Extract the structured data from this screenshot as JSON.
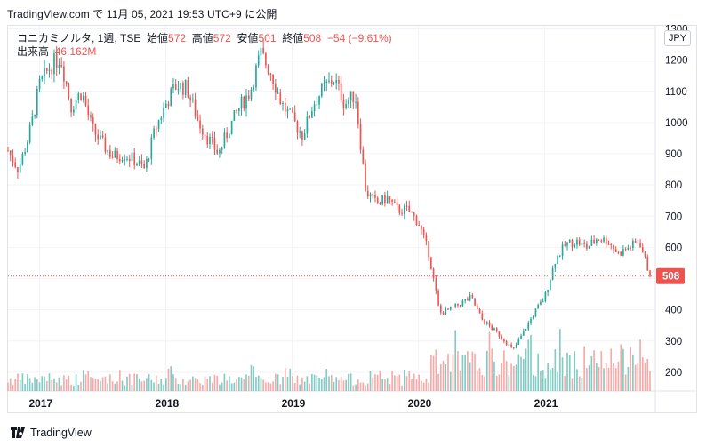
{
  "header": {
    "note": "TradingView.com で 11月 05, 2021 19:53 UTC+9 に公開"
  },
  "legend": {
    "symbol": "コニカミノルタ, 1週, TSE",
    "open_label": "始値",
    "open": "572",
    "high_label": "高値",
    "high": "572",
    "low_label": "安値",
    "low": "501",
    "close_label": "終値",
    "close": "508",
    "change": "−54 (−9.61%)",
    "volume_label": "出来高",
    "volume": "46.162M"
  },
  "currency": "JPY",
  "last_price_label": "508",
  "footer": {
    "brand": "TradingView"
  },
  "colors": {
    "up": "#26a69a",
    "down": "#ef5350",
    "vol_up": "#80cbc4",
    "vol_down": "#f7a9a7",
    "grid": "#f0f3fa"
  },
  "chart_data": {
    "type": "candlestick",
    "interval": "1W",
    "ylim": [
      140,
      1310
    ],
    "y_ticks": [
      200,
      300,
      400,
      500,
      600,
      700,
      800,
      900,
      1000,
      1100,
      1200,
      1300
    ],
    "x_ticks": [
      "2017",
      "2018",
      "2019",
      "2020",
      "2021"
    ],
    "x_range": [
      "2016-10",
      "2021-11"
    ],
    "last_close": 508,
    "price_path": [
      [
        "2016-10",
        910
      ],
      [
        "2016-11",
        850
      ],
      [
        "2016-12",
        960
      ],
      [
        "2017-01",
        1120
      ],
      [
        "2017-02",
        1180
      ],
      [
        "2017-03",
        1210
      ],
      [
        "2017-04",
        1050
      ],
      [
        "2017-05",
        1100
      ],
      [
        "2017-06",
        980
      ],
      [
        "2017-07",
        930
      ],
      [
        "2017-08",
        890
      ],
      [
        "2017-09",
        900
      ],
      [
        "2017-10",
        880
      ],
      [
        "2017-11",
        850
      ],
      [
        "2017-12",
        980
      ],
      [
        "2018-01",
        1060
      ],
      [
        "2018-02",
        1120
      ],
      [
        "2018-03",
        1110
      ],
      [
        "2018-04",
        1010
      ],
      [
        "2018-05",
        950
      ],
      [
        "2018-06",
        900
      ],
      [
        "2018-07",
        980
      ],
      [
        "2018-08",
        1050
      ],
      [
        "2018-09",
        1100
      ],
      [
        "2018-10",
        1220
      ],
      [
        "2018-11",
        1160
      ],
      [
        "2018-12",
        1060
      ],
      [
        "2019-01",
        1010
      ],
      [
        "2019-02",
        960
      ],
      [
        "2019-03",
        1060
      ],
      [
        "2019-04",
        1110
      ],
      [
        "2019-05",
        1140
      ],
      [
        "2019-06",
        1060
      ],
      [
        "2019-07",
        1090
      ],
      [
        "2019-08",
        780
      ],
      [
        "2019-09",
        740
      ],
      [
        "2019-10",
        760
      ],
      [
        "2019-11",
        720
      ],
      [
        "2019-12",
        720
      ],
      [
        "2020-01",
        680
      ],
      [
        "2020-02",
        580
      ],
      [
        "2020-03",
        390
      ],
      [
        "2020-04",
        400
      ],
      [
        "2020-05",
        420
      ],
      [
        "2020-06",
        440
      ],
      [
        "2020-07",
        370
      ],
      [
        "2020-08",
        340
      ],
      [
        "2020-09",
        310
      ],
      [
        "2020-10",
        270
      ],
      [
        "2020-11",
        330
      ],
      [
        "2020-12",
        390
      ],
      [
        "2021-01",
        440
      ],
      [
        "2021-02",
        560
      ],
      [
        "2021-03",
        610
      ],
      [
        "2021-04",
        620
      ],
      [
        "2021-05",
        600
      ],
      [
        "2021-06",
        630
      ],
      [
        "2021-07",
        620
      ],
      [
        "2021-08",
        580
      ],
      [
        "2021-09",
        600
      ],
      [
        "2021-10",
        620
      ],
      [
        "2021-11",
        508
      ]
    ]
  }
}
